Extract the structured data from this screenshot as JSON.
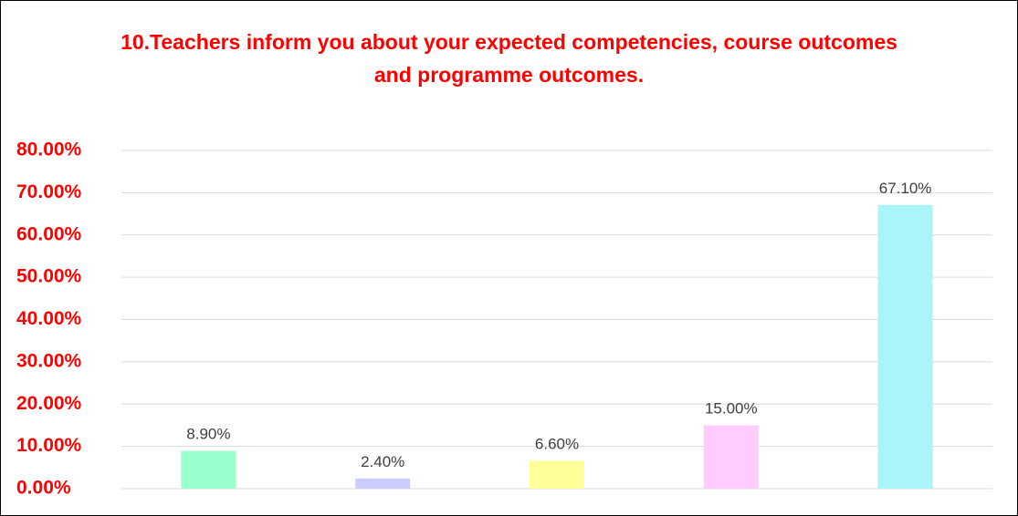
{
  "chart_data": {
    "type": "bar",
    "title": "10.Teachers inform you about your expected competencies, course outcomes and programme outcomes.",
    "categories": [
      null,
      null,
      null,
      null,
      null
    ],
    "values": [
      8.9,
      2.4,
      6.6,
      15,
      67.1
    ],
    "value_labels": [
      "8.90%",
      "2.40%",
      "6.60%",
      "15.00%",
      "67.10%"
    ],
    "colors": [
      "#99ffcc",
      "#ccccff",
      "#ffff99",
      "#ffccff",
      "#aaf5fa"
    ],
    "ylim": [
      0,
      80
    ],
    "yticks": [
      {
        "value": 0,
        "label": "0.00%"
      },
      {
        "value": 10,
        "label": "10.00%"
      },
      {
        "value": 20,
        "label": "20.00%"
      },
      {
        "value": 30,
        "label": "30.00%"
      },
      {
        "value": 40,
        "label": "40.00%"
      },
      {
        "value": 50,
        "label": "50.00%"
      },
      {
        "value": 60,
        "label": "60.00%"
      },
      {
        "value": 70,
        "label": "70.00%"
      },
      {
        "value": 80,
        "label": "80.00%"
      }
    ],
    "grid": true
  }
}
